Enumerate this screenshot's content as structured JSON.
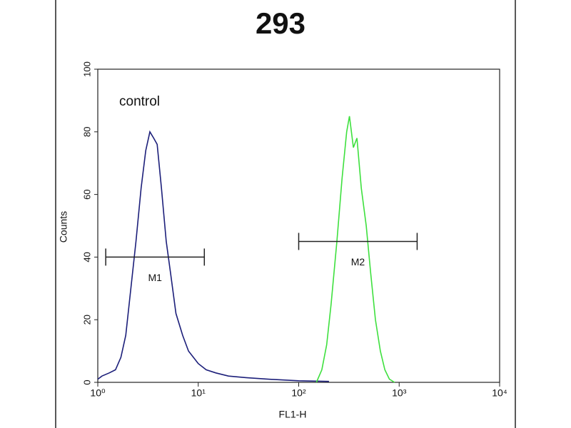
{
  "chart_data": {
    "type": "line",
    "title": "293",
    "xlabel": "FL1-H",
    "ylabel": "Counts",
    "xscale": "log",
    "xlim": [
      1,
      10000
    ],
    "xticks": [
      {
        "value": 1,
        "label": "10⁰"
      },
      {
        "value": 10,
        "label": "10¹"
      },
      {
        "value": 100,
        "label": "10²"
      },
      {
        "value": 1000,
        "label": "10³"
      },
      {
        "value": 10000,
        "label": "10⁴"
      }
    ],
    "ylim": [
      0,
      100
    ],
    "yticks": [
      0,
      20,
      40,
      60,
      80,
      100
    ],
    "series": [
      {
        "name": "control",
        "color": "#1c1f7a",
        "x": [
          1,
          1.1,
          1.3,
          1.5,
          1.7,
          1.9,
          2.1,
          2.4,
          2.7,
          3.0,
          3.3,
          3.6,
          3.9,
          4.3,
          4.8,
          5.3,
          6,
          7,
          8,
          10,
          12,
          15,
          20,
          30,
          50,
          100,
          200
        ],
        "values": [
          1,
          2,
          3,
          4,
          8,
          15,
          28,
          45,
          62,
          74,
          80,
          78,
          76,
          62,
          45,
          35,
          22,
          15,
          10,
          6,
          4,
          3,
          2,
          1.5,
          1,
          0.5,
          0.3
        ]
      },
      {
        "color": "#3ee03e",
        "x": [
          150,
          170,
          190,
          210,
          240,
          270,
          300,
          320,
          350,
          380,
          420,
          470,
          520,
          580,
          650,
          720,
          800,
          900
        ],
        "values": [
          0,
          4,
          12,
          25,
          45,
          65,
          80,
          85,
          75,
          78,
          62,
          50,
          35,
          20,
          10,
          4,
          1,
          0
        ]
      }
    ],
    "markers": [
      {
        "label": "M1",
        "range": [
          1.2,
          11.5
        ],
        "y": 40
      },
      {
        "label": "M2",
        "range": [
          100,
          1510
        ],
        "y": 45
      }
    ]
  }
}
